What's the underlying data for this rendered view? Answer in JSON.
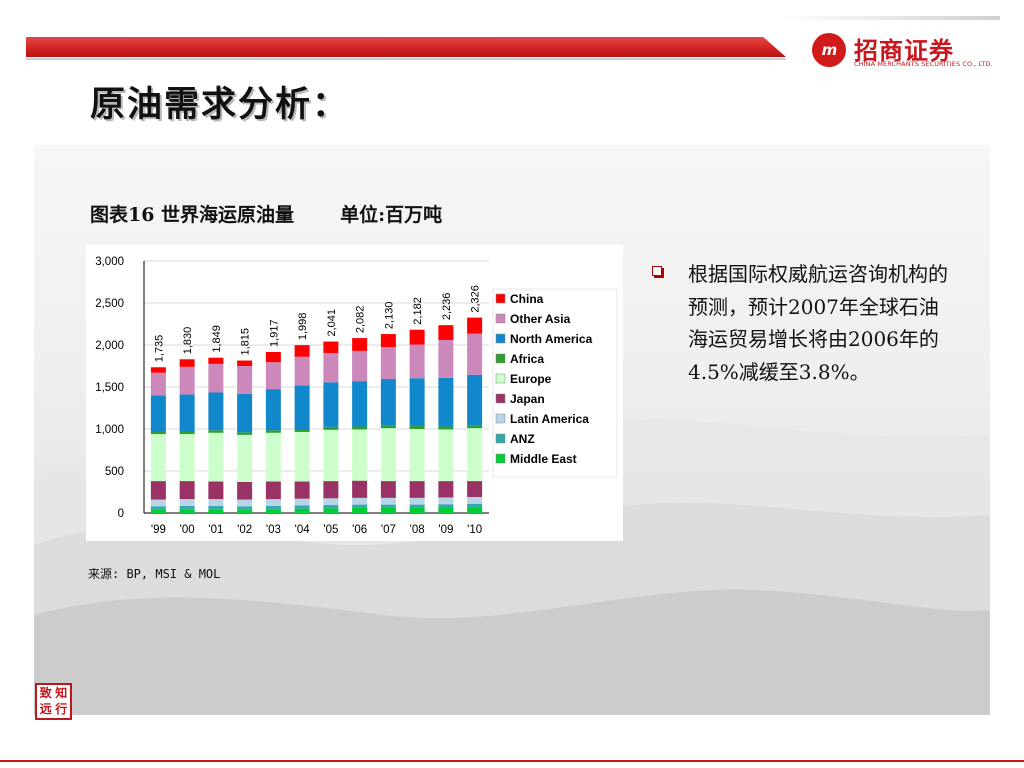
{
  "header": {
    "logo_mark": "m",
    "logo_cn": "招商证券",
    "logo_en": "CHINA MERCHANTS SECURITIES CO., LTD."
  },
  "page_title": "原油需求分析：",
  "chart_heading": {
    "title": "图表16 世界海运原油量",
    "unit": "单位:百万吨"
  },
  "source_note": "来源: BP, MSI & MOL",
  "bullet_text": "根据国际权威航运咨询机构的预测，预计2007年全球石油海运贸易增长将由2006年的4.5%减缓至3.8%。",
  "seal": {
    "chars": [
      "致",
      "知",
      "远",
      "行"
    ]
  },
  "chart_data": {
    "type": "bar",
    "stacked": true,
    "categories": [
      "'99",
      "'00",
      "'01",
      "'02",
      "'03",
      "'04",
      "'05",
      "'06",
      "'07",
      "'08",
      "'09",
      "'10"
    ],
    "totals": [
      1735,
      1830,
      1849,
      1815,
      1917,
      1998,
      2041,
      2082,
      2130,
      2182,
      2236,
      2326
    ],
    "total_labels": [
      "1,735",
      "1,830",
      "1,849",
      "1,815",
      "1,917",
      "1,998",
      "2,041",
      "2,082",
      "2,130",
      "2,182",
      "2,236",
      "2,326"
    ],
    "ylim": [
      0,
      3000
    ],
    "yticks": [
      0,
      500,
      1000,
      1500,
      2000,
      2500,
      3000
    ],
    "ytick_labels": [
      "0",
      "500",
      "1,000",
      "1,500",
      "2,000",
      "2,500",
      "3,000"
    ],
    "legend_position": "right",
    "series": [
      {
        "name": "Middle East",
        "color": "#00cc33",
        "values": [
          40,
          45,
          45,
          40,
          45,
          50,
          55,
          60,
          60,
          60,
          65,
          70
        ]
      },
      {
        "name": "ANZ",
        "color": "#33aaaa",
        "values": [
          40,
          40,
          40,
          40,
          40,
          40,
          40,
          40,
          40,
          40,
          40,
          40
        ]
      },
      {
        "name": "Latin America",
        "color": "#b8d4e8",
        "values": [
          80,
          80,
          80,
          80,
          80,
          80,
          80,
          80,
          80,
          80,
          80,
          80
        ]
      },
      {
        "name": "Japan",
        "color": "#993366",
        "values": [
          220,
          215,
          210,
          210,
          210,
          205,
          205,
          205,
          200,
          200,
          195,
          190
        ]
      },
      {
        "name": "Europe",
        "color": "#ccffcc",
        "values": [
          560,
          560,
          580,
          560,
          580,
          590,
          610,
          610,
          630,
          620,
          615,
          630
        ]
      },
      {
        "name": "Africa",
        "color": "#2e9e2e",
        "values": [
          30,
          30,
          30,
          30,
          30,
          35,
          35,
          35,
          35,
          35,
          35,
          35
        ]
      },
      {
        "name": "North America",
        "color": "#1188cc",
        "values": [
          430,
          440,
          450,
          460,
          490,
          520,
          530,
          540,
          550,
          570,
          580,
          600
        ]
      },
      {
        "name": "Other Asia",
        "color": "#cc88bb",
        "values": [
          270,
          330,
          340,
          330,
          320,
          340,
          350,
          360,
          380,
          400,
          450,
          490
        ]
      },
      {
        "name": "China",
        "color": "#ff0000",
        "values": [
          65,
          90,
          74,
          65,
          122,
          138,
          136,
          152,
          155,
          177,
          176,
          191
        ]
      }
    ]
  }
}
